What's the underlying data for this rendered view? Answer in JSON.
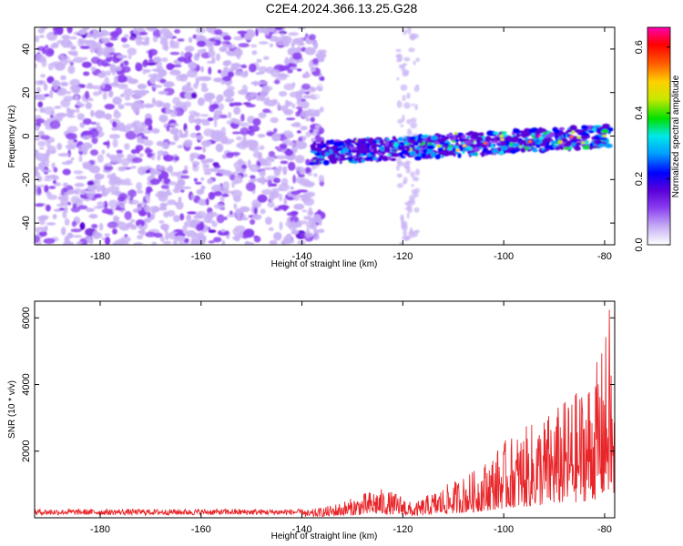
{
  "title": "C2E4.2024.366.13.25.G28",
  "colors": {
    "snr_line": "#e8262a",
    "low_amp": "#b89cf0",
    "mid_amp": "#6a1fe0",
    "colormap": [
      "#ffffff",
      "#c9b2f5",
      "#8a3ef0",
      "#5a00d8",
      "#0000ff",
      "#00a0ff",
      "#00e8e8",
      "#00e000",
      "#c8e800",
      "#ffd000",
      "#ff6000",
      "#ff0000",
      "#ff00b0"
    ]
  },
  "chart_data": [
    {
      "type": "heatmap",
      "name": "spectrogram",
      "xlabel": "Height of straight line (km)",
      "ylabel": "Frequency (Hz)",
      "xlim": [
        -193,
        -78
      ],
      "ylim": [
        -50,
        50
      ],
      "x_ticks": [
        -180,
        -160,
        -140,
        -120,
        -100,
        -80
      ],
      "y_ticks": [
        40,
        20,
        0,
        -20,
        -40
      ],
      "colorbar": {
        "label": "Normalized spectral amplitude",
        "range": [
          0.0,
          0.66
        ],
        "ticks": [
          "0.0",
          "0.2",
          "0.4",
          "0.6"
        ],
        "tick_values": [
          0.0,
          0.2,
          0.4,
          0.6
        ]
      },
      "features": {
        "noise_region_x": [
          -193,
          -138
        ],
        "signal_band": {
          "x": [
            -138,
            -79
          ],
          "freq_start_hz": -8,
          "freq_end_hz": 0,
          "half_width_hz": 5,
          "peak_amplitude": 0.66
        },
        "vertical_streaks_x": [
          -120,
          -118
        ]
      }
    },
    {
      "type": "line",
      "name": "snr",
      "xlabel": "Height of straight line (km)",
      "ylabel": "SNR (10 * v/v)",
      "xlim": [
        -193,
        -78
      ],
      "ylim": [
        0,
        6500
      ],
      "x_ticks": [
        -180,
        -160,
        -140,
        -120,
        -100,
        -80
      ],
      "y_ticks": [
        2000,
        4000,
        6000
      ],
      "series": [
        {
          "envelope_x": [
            -193,
            -150,
            -140,
            -135,
            -130,
            -125,
            -120,
            -118,
            -115,
            -110,
            -105,
            -100,
            -95,
            -90,
            -85,
            -82,
            -80,
            -79,
            -78
          ],
          "envelope_y": [
            150,
            150,
            200,
            350,
            600,
            900,
            700,
            400,
            700,
            1100,
            1500,
            2300,
            2800,
            3300,
            3900,
            4500,
            5300,
            6500,
            3000
          ]
        }
      ]
    }
  ]
}
